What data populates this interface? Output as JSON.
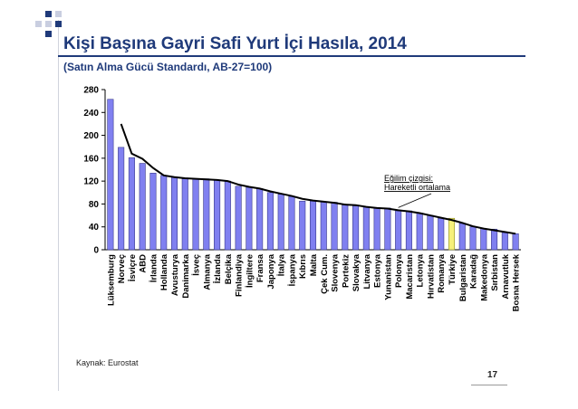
{
  "slide": {
    "title": "Kişi Başına Gayri Safi Yurt İçi Hasıla, 2014",
    "subtitle": "(Satın Alma Gücü Standardı, AB-27=100)",
    "source": "Kaynak: Eurostat",
    "page_number": "17",
    "accent_color": "#1f3a7a"
  },
  "chart_data": {
    "type": "bar",
    "categories": [
      "Lüksemburg",
      "Norveç",
      "İsviçre",
      "ABD",
      "İrlanda",
      "Hollanda",
      "Avusturya",
      "Danimarka",
      "İsveç",
      "Almanya",
      "İzlanda",
      "Belçika",
      "Finlandiya",
      "İngiltere",
      "Fransa",
      "Japonya",
      "İtalya",
      "İspanya",
      "Kıbrıs",
      "Malta",
      "Çek Cum.",
      "Slovenya",
      "Portekiz",
      "Slovakya",
      "Litvanya",
      "Estonya",
      "Yunanistan",
      "Polonya",
      "Macaristan",
      "Letonya",
      "Hırvatistan",
      "Romanya",
      "Türkiye",
      "Bulgaristan",
      "Karadağ",
      "Makedonya",
      "Sırbistan",
      "Arnavutluk",
      "Bosna Hersek"
    ],
    "values": [
      263,
      179,
      161,
      151,
      134,
      130,
      127,
      124,
      124,
      124,
      122,
      120,
      111,
      109,
      107,
      100,
      97,
      93,
      85,
      85,
      84,
      83,
      78,
      77,
      75,
      73,
      73,
      68,
      68,
      64,
      60,
      55,
      55,
      46,
      40,
      37,
      36,
      30,
      28
    ],
    "trend": [
      263,
      220,
      168,
      159,
      143,
      130,
      127,
      125,
      124,
      123,
      122,
      120,
      114,
      110,
      107,
      102,
      98,
      94,
      89,
      86,
      84,
      82,
      79,
      78,
      75,
      73,
      72,
      69,
      67,
      64,
      60,
      56,
      52,
      47,
      41,
      37,
      34,
      31,
      28
    ],
    "highlight": "Türkiye",
    "ylim": [
      0,
      280
    ],
    "yticks": [
      0,
      40,
      80,
      120,
      160,
      200,
      240,
      280
    ],
    "annotation": "Eğilim çizgisi: Hareketli ortalama",
    "bar_color": "#8080f0",
    "bar_stroke": "#3a3a8a",
    "highlight_color": "#f6f07a",
    "trend_color": "#000000",
    "grid": false
  }
}
